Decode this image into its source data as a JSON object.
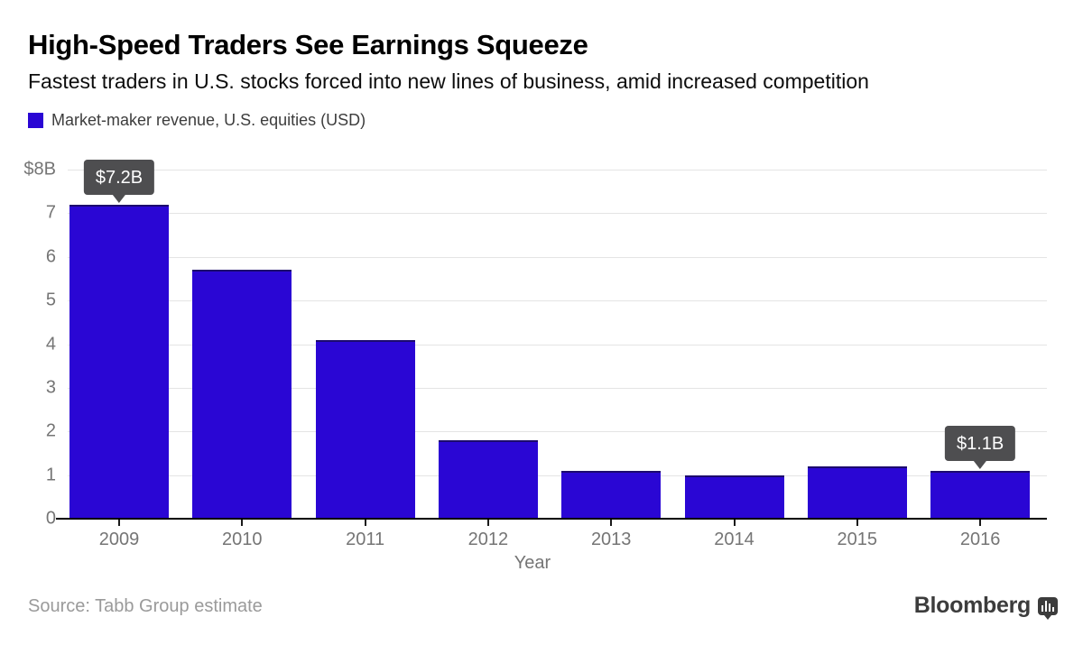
{
  "header": {
    "title": "High-Speed Traders See Earnings Squeeze",
    "subtitle": "Fastest traders in U.S. stocks forced into new lines of business, amid increased competition"
  },
  "legend": {
    "label": "Market-maker revenue, U.S. equities (USD)",
    "swatch_color": "#2a06d4"
  },
  "chart_data": {
    "type": "bar",
    "title": "High-Speed Traders See Earnings Squeeze",
    "subtitle": "Fastest traders in U.S. stocks forced into new lines of business, amid increased competition",
    "series_name": "Market-maker revenue, U.S. equities (USD)",
    "categories": [
      "2009",
      "2010",
      "2011",
      "2012",
      "2013",
      "2014",
      "2015",
      "2016"
    ],
    "values": [
      7.2,
      5.7,
      4.1,
      1.8,
      1.1,
      1.0,
      1.2,
      1.1
    ],
    "xlabel": "Year",
    "ylabel": "",
    "ylim": [
      0,
      8
    ],
    "ytick_labels": [
      "0",
      "1",
      "2",
      "3",
      "4",
      "5",
      "6",
      "7",
      "$8B"
    ],
    "grid": true,
    "legend_position": "top-left",
    "bar_color": "#2a06d4",
    "bar_edge_color": "#1c0a6e",
    "gridline_color": "#e4e4e4",
    "axis_label_color": "#757575",
    "annotations": [
      {
        "category": "2009",
        "text": "$7.2B"
      },
      {
        "category": "2016",
        "text": "$1.1B"
      }
    ],
    "annotation_bg_color": "#4e4e50"
  },
  "footer": {
    "source": "Source: Tabb Group estimate",
    "brand": "Bloomberg"
  }
}
